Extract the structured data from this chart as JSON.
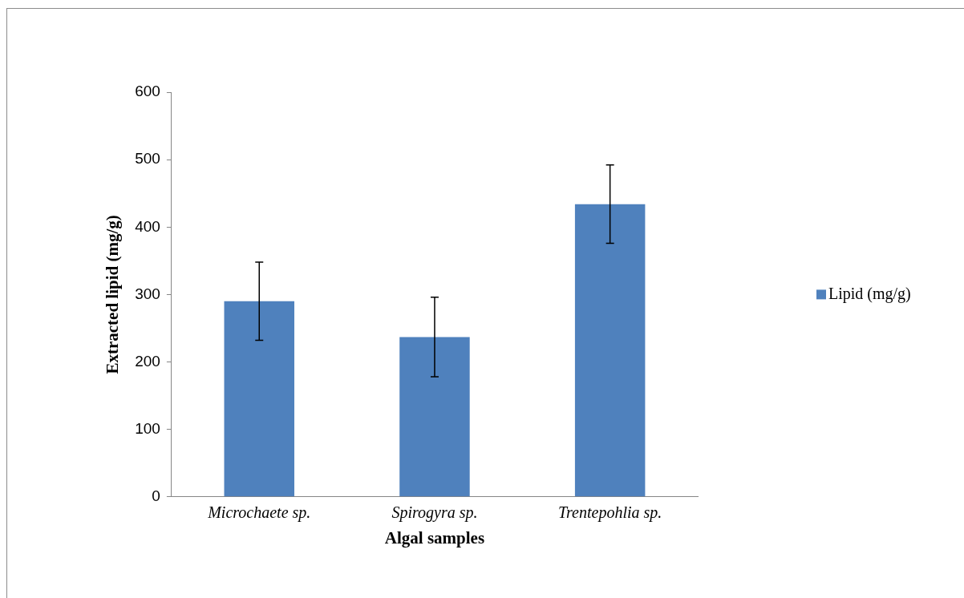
{
  "chart_data": {
    "type": "bar",
    "xlabel": "Algal samples",
    "ylabel": "Extracted lipid (mg/g)",
    "categories": [
      "Microchaete sp.",
      "Spirogyra sp.",
      "Trentepohlia sp."
    ],
    "series": [
      {
        "name": "Lipid (mg/g)",
        "color": "#4f81bd",
        "values": [
          290,
          237,
          434
        ],
        "errors": [
          58,
          59,
          58
        ]
      }
    ],
    "ylim": [
      0,
      600
    ],
    "yticks": [
      0,
      100,
      200,
      300,
      400,
      500,
      600
    ],
    "grid": false,
    "legend": "right"
  }
}
